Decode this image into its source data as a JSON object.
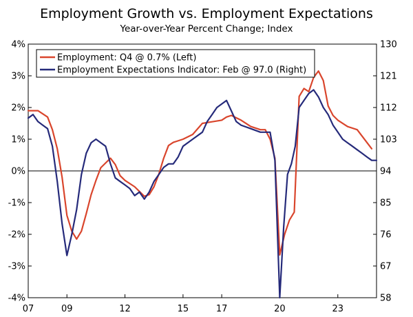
{
  "chart_data": {
    "type": "line",
    "title": "Employment Growth vs. Employment Expectations",
    "subtitle": "Year-over-Year Percent Change; Index",
    "xlabel": "",
    "ylabel_left": "",
    "ylabel_right": "",
    "x_range": [
      2007.0,
      2025.0
    ],
    "x_tick_labels": [
      "07",
      "09",
      "12",
      "15",
      "17",
      "20",
      "23"
    ],
    "x_tick_values": [
      2007,
      2009,
      2012,
      2015,
      2017,
      2020,
      2023
    ],
    "ylim_left": [
      -4,
      4
    ],
    "y_left_ticks": [
      -4,
      -3,
      -2,
      -1,
      0,
      1,
      2,
      3,
      4
    ],
    "y_left_tick_labels": [
      "-4%",
      "-3%",
      "-2%",
      "-1%",
      "0%",
      "1%",
      "2%",
      "3%",
      "4%"
    ],
    "ylim_right": [
      58,
      130
    ],
    "y_right_ticks": [
      58,
      67,
      76,
      85,
      94,
      103,
      112,
      121,
      130
    ],
    "y_right_tick_labels": [
      "58",
      "67",
      "76",
      "85",
      "94",
      "103",
      "112",
      "121",
      "130"
    ],
    "grid": false,
    "legend_position": "top-left",
    "series": [
      {
        "name": "Employment: Q4 @ 0.7% (Left)",
        "axis": "left",
        "color": "#d9452c",
        "x": [
          2007.0,
          2007.5,
          2008.0,
          2008.25,
          2008.5,
          2008.75,
          2009.0,
          2009.25,
          2009.5,
          2009.75,
          2010.0,
          2010.25,
          2010.5,
          2010.75,
          2011.0,
          2011.25,
          2011.5,
          2011.75,
          2012.0,
          2012.5,
          2013.0,
          2013.25,
          2013.5,
          2013.75,
          2014.0,
          2014.25,
          2014.5,
          2015.0,
          2015.5,
          2016.0,
          2016.5,
          2017.0,
          2017.25,
          2017.5,
          2018.0,
          2018.5,
          2019.0,
          2019.25,
          2019.5,
          2019.75,
          2020.0,
          2020.25,
          2020.5,
          2020.75,
          2021.0,
          2021.25,
          2021.5,
          2021.75,
          2022.0,
          2022.25,
          2022.5,
          2022.75,
          2023.0,
          2023.5,
          2024.0,
          2024.5,
          2024.75
        ],
        "y": [
          1.9,
          1.9,
          1.7,
          1.3,
          0.7,
          -0.2,
          -1.4,
          -1.9,
          -2.15,
          -1.9,
          -1.35,
          -0.75,
          -0.3,
          0.1,
          0.25,
          0.4,
          0.2,
          -0.15,
          -0.3,
          -0.5,
          -0.8,
          -0.75,
          -0.5,
          -0.1,
          0.4,
          0.8,
          0.9,
          1.0,
          1.15,
          1.5,
          1.55,
          1.6,
          1.7,
          1.75,
          1.6,
          1.4,
          1.3,
          1.3,
          1.0,
          0.4,
          -2.65,
          -2.0,
          -1.55,
          -1.3,
          2.35,
          2.6,
          2.5,
          2.95,
          3.15,
          2.85,
          2.05,
          1.75,
          1.6,
          1.4,
          1.3,
          0.9,
          0.7
        ]
      },
      {
        "name": "Employment Expectations Indicator: Feb @ 97.0 (Right)",
        "axis": "right",
        "color": "#252a7a",
        "x": [
          2007.0,
          2007.25,
          2007.5,
          2007.75,
          2008.0,
          2008.25,
          2008.5,
          2008.75,
          2009.0,
          2009.25,
          2009.5,
          2009.75,
          2010.0,
          2010.25,
          2010.5,
          2010.75,
          2011.0,
          2011.25,
          2011.5,
          2011.75,
          2012.0,
          2012.25,
          2012.5,
          2012.75,
          2013.0,
          2013.25,
          2013.5,
          2013.75,
          2014.0,
          2014.25,
          2014.5,
          2014.75,
          2015.0,
          2015.5,
          2016.0,
          2016.25,
          2016.5,
          2016.75,
          2017.0,
          2017.25,
          2017.5,
          2017.75,
          2018.0,
          2018.5,
          2019.0,
          2019.5,
          2019.75,
          2020.0,
          2020.2,
          2020.4,
          2020.6,
          2020.8,
          2021.0,
          2021.25,
          2021.5,
          2021.75,
          2022.0,
          2022.25,
          2022.5,
          2022.75,
          2023.0,
          2023.25,
          2023.5,
          2023.75,
          2024.0,
          2024.25,
          2024.5,
          2024.75,
          2025.0
        ],
        "y": [
          109,
          110,
          108,
          107,
          106,
          101,
          91,
          79,
          70,
          76,
          83,
          93,
          99,
          102,
          103,
          102,
          101,
          96,
          92,
          91,
          90,
          89,
          87,
          88,
          86,
          88,
          91,
          93,
          95,
          96,
          96,
          98,
          101,
          103,
          105,
          108,
          110,
          112,
          113,
          114,
          111,
          108,
          107,
          106,
          105,
          105,
          97,
          58,
          78,
          93,
          96,
          101,
          112,
          114,
          116,
          117,
          115,
          112,
          110,
          107,
          105,
          103,
          102,
          101,
          100,
          99,
          98,
          97,
          97
        ]
      }
    ]
  }
}
